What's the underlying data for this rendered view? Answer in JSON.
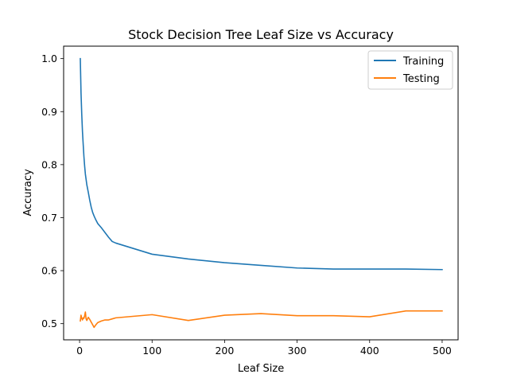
{
  "chart_data": {
    "type": "line",
    "title": "Stock Decision Tree Leaf Size vs Accuracy",
    "xlabel": "Leaf Size",
    "ylabel": "Accuracy",
    "xlim": [
      -22,
      522
    ],
    "ylim": [
      0.4695,
      1.0235
    ],
    "xticks": [
      0,
      100,
      200,
      300,
      400,
      500
    ],
    "yticks": [
      0.5,
      0.6,
      0.7,
      0.8,
      0.9,
      1.0
    ],
    "xtick_labels": [
      "0",
      "100",
      "200",
      "300",
      "400",
      "500"
    ],
    "ytick_labels": [
      "0.5",
      "0.6",
      "0.7",
      "0.8",
      "0.9",
      "1.0"
    ],
    "grid": false,
    "legend_position": "top-right",
    "series": [
      {
        "name": "Training",
        "color": "#1f77b4",
        "x": [
          1,
          2,
          3,
          4,
          5,
          6,
          7,
          8,
          9,
          10,
          12,
          14,
          16,
          18,
          20,
          22,
          25,
          30,
          35,
          40,
          45,
          50,
          100,
          150,
          200,
          250,
          300,
          350,
          400,
          450,
          500
        ],
        "y": [
          1.0,
          0.935,
          0.895,
          0.862,
          0.838,
          0.815,
          0.797,
          0.782,
          0.772,
          0.762,
          0.748,
          0.733,
          0.72,
          0.71,
          0.703,
          0.697,
          0.689,
          0.681,
          0.672,
          0.663,
          0.655,
          0.652,
          0.631,
          0.622,
          0.615,
          0.61,
          0.605,
          0.603,
          0.603,
          0.603,
          0.602
        ]
      },
      {
        "name": "Testing",
        "color": "#ff7f0e",
        "x": [
          1,
          2,
          3,
          4,
          5,
          6,
          7,
          8,
          9,
          10,
          12,
          14,
          16,
          18,
          20,
          22,
          25,
          30,
          35,
          40,
          45,
          50,
          100,
          150,
          200,
          250,
          300,
          350,
          400,
          450,
          500
        ],
        "y": [
          0.505,
          0.516,
          0.51,
          0.507,
          0.511,
          0.51,
          0.515,
          0.522,
          0.509,
          0.506,
          0.512,
          0.508,
          0.503,
          0.498,
          0.493,
          0.497,
          0.502,
          0.505,
          0.507,
          0.507,
          0.509,
          0.511,
          0.517,
          0.506,
          0.516,
          0.519,
          0.515,
          0.515,
          0.513,
          0.524,
          0.524
        ]
      }
    ]
  }
}
